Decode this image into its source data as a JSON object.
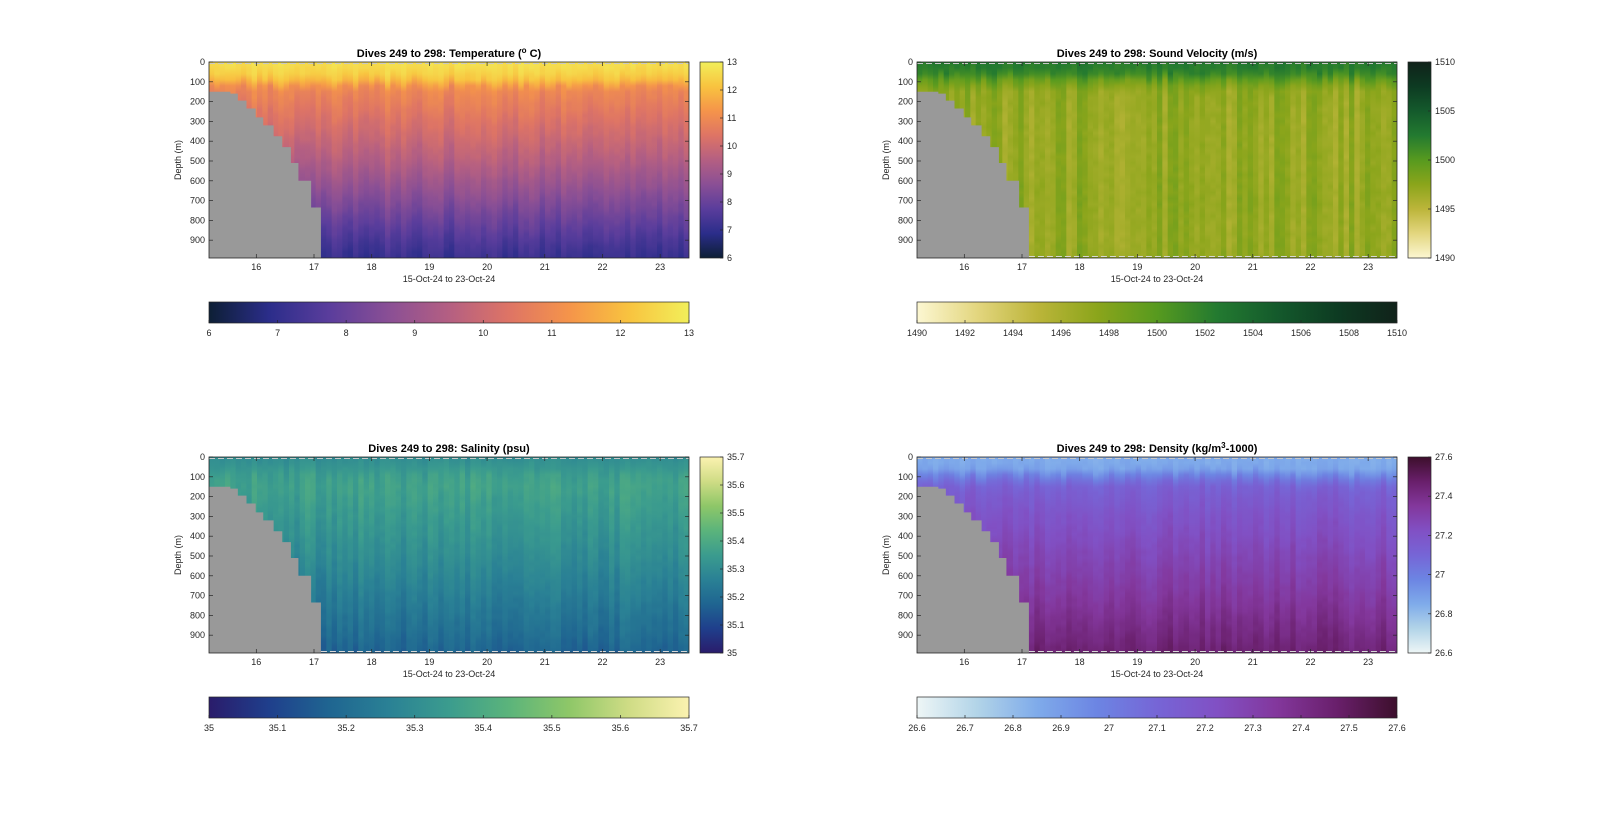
{
  "figure_bg": "#ffffff",
  "land_color": "#999999",
  "chart_data": [
    {
      "type": "heatmap",
      "title_prefix": "Dives 249 to 298: Temperature (",
      "title_sup": "o",
      "title_suffix": " C)",
      "xlabel": "15-Oct-24 to 23-Oct-24",
      "ylabel": "Depth (m)",
      "x_ticks": [
        "16",
        "17",
        "18",
        "19",
        "20",
        "21",
        "22",
        "23"
      ],
      "x_range": [
        15.18,
        23.5
      ],
      "y_ticks": [
        "0",
        "100",
        "200",
        "300",
        "400",
        "500",
        "600",
        "700",
        "800",
        "900"
      ],
      "y_range": [
        0,
        990
      ],
      "colorbar_ticks": [
        "6",
        "7",
        "8",
        "9",
        "10",
        "11",
        "12",
        "13"
      ],
      "hcolorbar_ticks": [
        "6",
        "7",
        "8",
        "9",
        "10",
        "11",
        "12",
        "13"
      ],
      "clim": [
        6,
        13
      ],
      "colormap": [
        "#0d1f35",
        "#2b2d8a",
        "#5a3d9c",
        "#8a4f95",
        "#b45f82",
        "#de7465",
        "#f5944a",
        "#f8c33f",
        "#f2ef5a"
      ],
      "profile": {
        "depth": [
          0,
          50,
          95,
          130,
          200,
          300,
          400,
          500,
          600,
          700,
          800,
          900,
          990
        ],
        "value": [
          12.7,
          12.5,
          12.0,
          11.0,
          10.7,
          10.3,
          9.9,
          9.5,
          9.0,
          8.5,
          8.0,
          7.5,
          7.1
        ]
      },
      "variability": 0.25
    },
    {
      "type": "heatmap",
      "title_prefix": "Dives 249 to 298: Sound Velocity (m/s)",
      "title_sup": "",
      "title_suffix": "",
      "xlabel": "15-Oct-24 to 23-Oct-24",
      "ylabel": "Depth (m)",
      "x_ticks": [
        "16",
        "17",
        "18",
        "19",
        "20",
        "21",
        "22",
        "23"
      ],
      "x_range": [
        15.18,
        23.5
      ],
      "y_ticks": [
        "0",
        "100",
        "200",
        "300",
        "400",
        "500",
        "600",
        "700",
        "800",
        "900"
      ],
      "y_range": [
        0,
        990
      ],
      "colorbar_ticks": [
        "1490",
        "1495",
        "1500",
        "1505",
        "1510"
      ],
      "hcolorbar_ticks": [
        "1490",
        "1492",
        "1494",
        "1496",
        "1498",
        "1500",
        "1502",
        "1504",
        "1506",
        "1508",
        "1510"
      ],
      "clim": [
        1490,
        1510
      ],
      "colormap": [
        "#fcf7d2",
        "#e3d67f",
        "#bcb53a",
        "#8ba51b",
        "#579a1f",
        "#237a30",
        "#145a2c",
        "#0d3b22",
        "#10221a"
      ],
      "profile": {
        "depth": [
          0,
          50,
          100,
          150,
          300,
          500,
          700,
          850,
          990
        ],
        "value": [
          1502.5,
          1502.0,
          1499.0,
          1497.2,
          1497.0,
          1497.0,
          1497.2,
          1497.0,
          1497.2
        ]
      },
      "variability": 1.2
    },
    {
      "type": "heatmap",
      "title_prefix": "Dives 249 to 298: Salinity (psu)",
      "title_sup": "",
      "title_suffix": "",
      "xlabel": "15-Oct-24 to 23-Oct-24",
      "ylabel": "Depth (m)",
      "x_ticks": [
        "16",
        "17",
        "18",
        "19",
        "20",
        "21",
        "22",
        "23"
      ],
      "x_range": [
        15.18,
        23.5
      ],
      "y_ticks": [
        "0",
        "100",
        "200",
        "300",
        "400",
        "500",
        "600",
        "700",
        "800",
        "900"
      ],
      "y_range": [
        0,
        990
      ],
      "colorbar_ticks": [
        "35",
        "35.1",
        "35.2",
        "35.3",
        "35.4",
        "35.5",
        "35.6",
        "35.7"
      ],
      "hcolorbar_ticks": [
        "35",
        "35.1",
        "35.2",
        "35.3",
        "35.4",
        "35.5",
        "35.6",
        "35.7"
      ],
      "clim": [
        35,
        35.7
      ],
      "colormap": [
        "#2a1c6b",
        "#1f3f8c",
        "#1f6591",
        "#2a8195",
        "#3b9c8e",
        "#5bb47b",
        "#8ec768",
        "#cfdc85",
        "#fbf2b0"
      ],
      "profile": {
        "depth": [
          0,
          50,
          100,
          150,
          300,
          500,
          700,
          900,
          990
        ],
        "value": [
          35.3,
          35.33,
          35.36,
          35.37,
          35.34,
          35.3,
          35.25,
          35.2,
          35.17
        ]
      },
      "variability": 0.03
    },
    {
      "type": "heatmap",
      "title_prefix": "Dives 249 to 298: Density (kg/m",
      "title_sup": "3",
      "title_suffix": "-1000)",
      "xlabel": "15-Oct-24 to 23-Oct-24",
      "ylabel": "Depth (m)",
      "x_ticks": [
        "16",
        "17",
        "18",
        "19",
        "20",
        "21",
        "22",
        "23"
      ],
      "x_range": [
        15.18,
        23.5
      ],
      "y_ticks": [
        "0",
        "100",
        "200",
        "300",
        "400",
        "500",
        "600",
        "700",
        "800",
        "900"
      ],
      "y_range": [
        0,
        990
      ],
      "colorbar_ticks": [
        "26.6",
        "26.8",
        "27",
        "27.2",
        "27.4",
        "27.6"
      ],
      "hcolorbar_ticks": [
        "26.6",
        "26.7",
        "26.8",
        "26.9",
        "27",
        "27.1",
        "27.2",
        "27.3",
        "27.4",
        "27.5",
        "27.6"
      ],
      "clim": [
        26.6,
        27.6
      ],
      "colormap": [
        "#eef6f6",
        "#b2d4e8",
        "#7fabea",
        "#6c85e3",
        "#7665d6",
        "#8150c4",
        "#83379c",
        "#691f6b",
        "#3d0f2c"
      ],
      "profile": {
        "depth": [
          0,
          60,
          100,
          150,
          200,
          300,
          500,
          700,
          900,
          990
        ],
        "value": [
          26.85,
          26.86,
          27.0,
          27.12,
          27.15,
          27.2,
          27.27,
          27.34,
          27.42,
          27.46
        ]
      },
      "variability": 0.04
    }
  ]
}
